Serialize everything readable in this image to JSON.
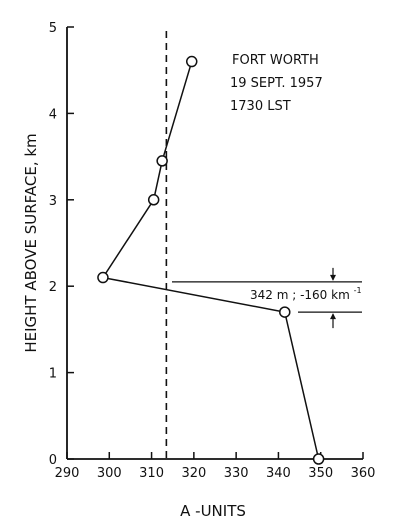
{
  "chart_data": {
    "type": "line",
    "title_lines": [
      "FORT WORTH",
      "19  SEPT. 1957",
      "1730 LST"
    ],
    "xlabel": "A -UNITS",
    "ylabel": "HEIGHT   ABOVE   SURFACE,  km",
    "xlim": [
      290,
      360
    ],
    "ylim": [
      0,
      5
    ],
    "xticks": [
      "290",
      "300",
      "310",
      "320",
      "330",
      "340",
      "350",
      "360"
    ],
    "yticks": [
      "0",
      "1",
      "2",
      "3",
      "4",
      "5"
    ],
    "series": [
      {
        "points": [
          {
            "x": 349.5,
            "y": 0.0
          },
          {
            "x": 341.5,
            "y": 1.7
          },
          {
            "x": 298.5,
            "y": 2.1
          },
          {
            "x": 310.5,
            "y": 3.0
          },
          {
            "x": 312.5,
            "y": 3.45
          },
          {
            "x": 319.5,
            "y": 4.6
          }
        ]
      }
    ],
    "reference_line": {
      "x": 313.5
    },
    "layer": {
      "y_bottom": 1.7,
      "y_top": 2.05
    },
    "annotation": "342 m ;  -160  km",
    "annotation_sup": "-1",
    "grid": false
  }
}
